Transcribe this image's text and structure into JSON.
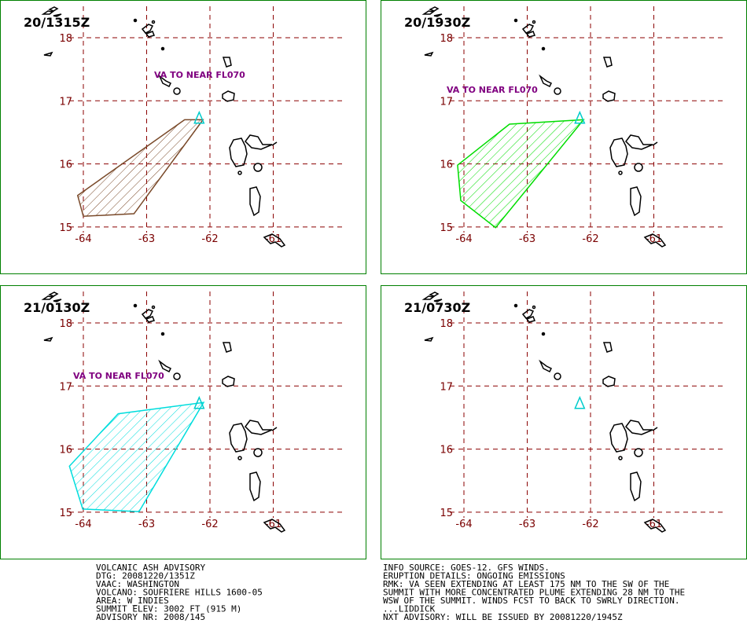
{
  "panels": [
    {
      "time": "20/1315Z",
      "ash_label": "VA TO NEAR FL070",
      "color": "#7a4a2a",
      "ash_cloud": [
        [
          -64.09,
          15.5
        ],
        [
          -63.33,
          16.04
        ],
        [
          -62.4,
          16.7
        ],
        [
          -62.11,
          16.7
        ],
        [
          -63.2,
          15.21
        ],
        [
          -64.0,
          15.17
        ]
      ]
    },
    {
      "time": "20/1930Z",
      "ash_label": "VA TO NEAR FL070",
      "color": "#00dd00",
      "ash_cloud": [
        [
          -64.1,
          15.98
        ],
        [
          -64.05,
          15.42
        ],
        [
          -63.5,
          14.99
        ],
        [
          -62.11,
          16.7
        ],
        [
          -63.28,
          16.63
        ]
      ]
    },
    {
      "time": "21/0130Z",
      "ash_label": "VA TO NEAR FL070",
      "color": "#00dddd",
      "ash_cloud": [
        [
          -64.22,
          15.73
        ],
        [
          -64.01,
          15.05
        ],
        [
          -63.12,
          15.01
        ],
        [
          -62.1,
          16.74
        ],
        [
          -63.45,
          16.56
        ]
      ]
    },
    {
      "time": "21/0730Z"
    }
  ],
  "volcano": [
    -62.17,
    16.72
  ],
  "latitudes": [
    18,
    17,
    16,
    15
  ],
  "longitudes": [
    -64,
    -63,
    -62,
    -61
  ],
  "advisory_left": [
    "VOLCANIC ASH ADVISORY",
    "DTG: 20081220/1351Z",
    "VAAC: WASHINGTON",
    "VOLCANO: SOUFRIERE HILLS 1600-05",
    "AREA: W_INDIES",
    "SUMMIT ELEV: 3002 FT (915 M)",
    "ADVISORY NR: 2008/145"
  ],
  "advisory_right": [
    "INFO SOURCE: GOES-12. GFS WINDS.",
    "ERUPTION DETAILS: ONGOING EMISSIONS",
    "RMK: VA SEEN EXTENDING AT LEAST 175 NM TO THE SW OF THE",
    "SUMMIT WITH MORE CONCENTRATED PLUME EXTENDING 28 NM TO THE",
    "WSW OF THE SUMMIT. WINDS FCST TO BACK TO SWRLY DIRECTION.",
    "...LIDDICK",
    "NXT ADVISORY: WILL BE ISSUED BY 20081220/1945Z"
  ]
}
